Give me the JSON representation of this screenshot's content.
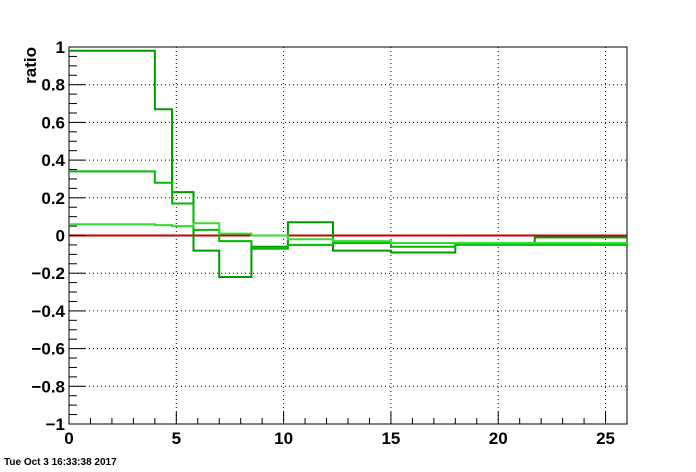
{
  "timestamp": "Tue Oct  3 16:33:38 2017",
  "chart_data": {
    "type": "line",
    "step": true,
    "title": "",
    "xlabel": "",
    "ylabel": "ratio",
    "xlim": [
      0,
      26
    ],
    "ylim": [
      -1,
      1
    ],
    "grid": true,
    "x_ticks": [
      0,
      5,
      10,
      15,
      20,
      25
    ],
    "x_tick_labels": [
      "0",
      "5",
      "10",
      "15",
      "20",
      "25"
    ],
    "y_ticks": [
      -1,
      -0.8,
      -0.6,
      -0.4,
      -0.2,
      0,
      0.2,
      0.4,
      0.6,
      0.8,
      1
    ],
    "y_tick_labels": [
      "−1",
      "−0.8",
      "−0.6",
      "−0.4",
      "−0.2",
      "0",
      "0.2",
      "0.4",
      "0.6",
      "0.8",
      "1"
    ],
    "bin_edges": [
      0,
      4,
      4.8,
      5.8,
      7,
      8.5,
      10.2,
      12.3,
      15,
      18,
      21.7,
      26
    ],
    "series": [
      {
        "color": "#cc0000",
        "values": [
          0,
          0,
          0,
          0,
          0,
          0,
          0,
          0,
          0,
          0,
          0
        ]
      },
      {
        "color": "#009900",
        "values": [
          0.98,
          0.67,
          0.23,
          -0.08,
          -0.22,
          -0.06,
          0.07,
          -0.08,
          -0.09,
          -0.04,
          -0.01
        ]
      },
      {
        "color": "#00bb00",
        "values": [
          0.34,
          0.28,
          0.17,
          0.03,
          -0.03,
          -0.07,
          -0.05,
          -0.04,
          -0.06,
          -0.05,
          -0.05
        ]
      },
      {
        "color": "#33dd33",
        "values": [
          0.06,
          0.055,
          0.05,
          0.065,
          0.01,
          0.0,
          -0.02,
          -0.03,
          -0.04,
          -0.04,
          -0.04
        ]
      }
    ]
  }
}
